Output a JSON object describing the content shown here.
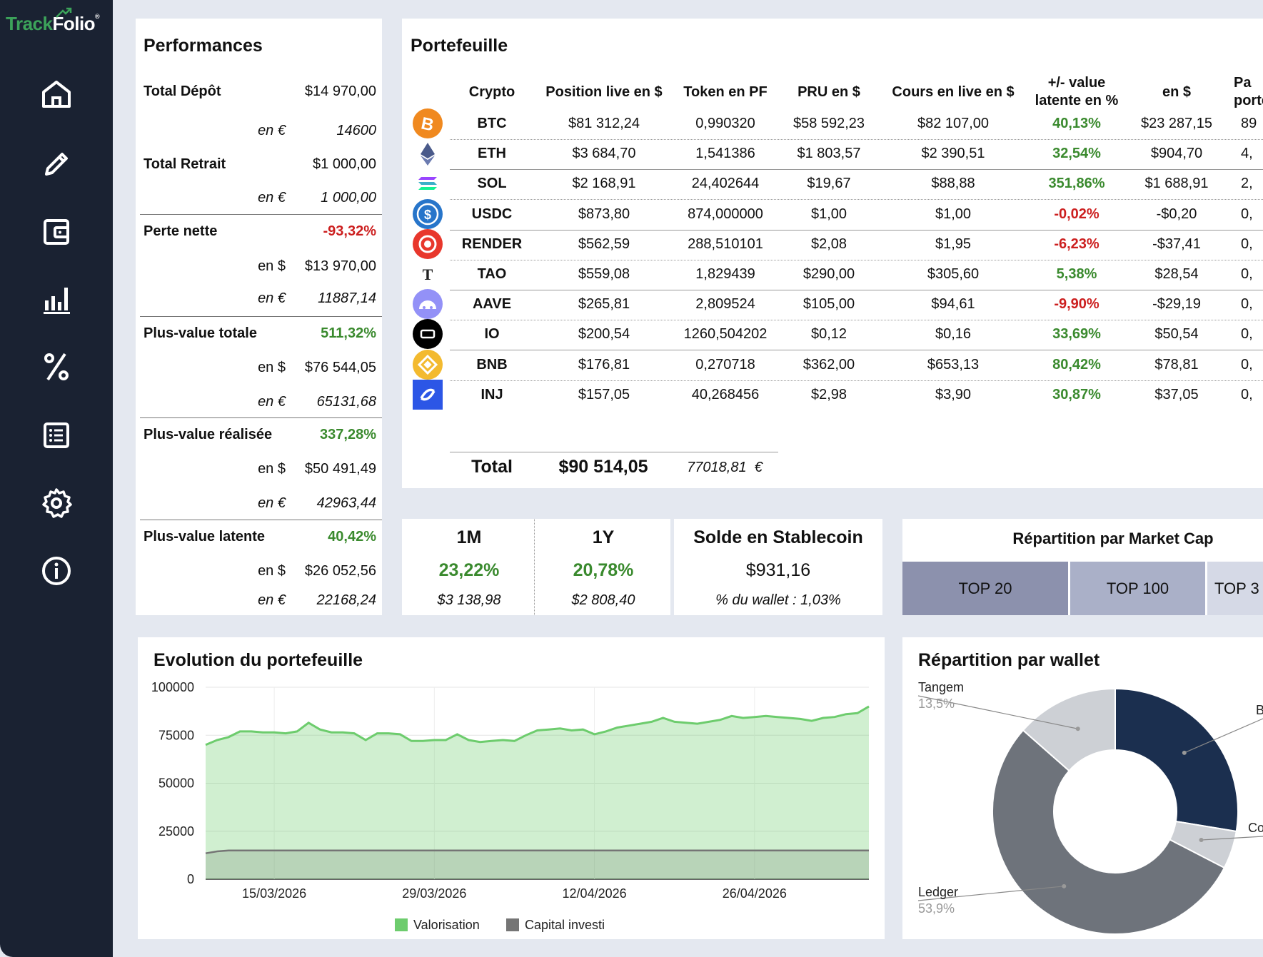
{
  "app": {
    "logo_track": "Track",
    "logo_folio": "Folio",
    "logo_reg": "®"
  },
  "nav": [
    {
      "name": "home-icon"
    },
    {
      "name": "pencil-icon"
    },
    {
      "name": "wallet-icon"
    },
    {
      "name": "bar-chart-icon"
    },
    {
      "name": "percent-icon"
    },
    {
      "name": "list-icon"
    },
    {
      "name": "gear-icon"
    },
    {
      "name": "info-icon"
    }
  ],
  "performances": {
    "title": "Performances",
    "total_depot": {
      "label": "Total Dépôt",
      "usd": "$14 970,00",
      "eur_label": "en €",
      "eur": "14600"
    },
    "total_retrait": {
      "label": "Total Retrait",
      "usd": "$1 000,00",
      "eur_label": "en €",
      "eur": "1 000,00"
    },
    "perte_nette": {
      "label": "Perte nette",
      "pct": "-93,32%",
      "usd_label": "en $",
      "usd": "$13 970,00",
      "eur_label": "en €",
      "eur": "11887,14"
    },
    "pv_totale": {
      "label": "Plus-value totale",
      "pct": "511,32%",
      "usd_label": "en $",
      "usd": "$76 544,05",
      "eur_label": "en €",
      "eur": "65131,68"
    },
    "pv_realisee": {
      "label": "Plus-value réalisée",
      "pct": "337,28%",
      "usd_label": "en $",
      "usd": "$50 491,49",
      "eur_label": "en €",
      "eur": "42963,44"
    },
    "pv_latente": {
      "label": "Plus-value latente",
      "pct": "40,42%",
      "usd_label": "en $",
      "usd": "$26 052,56",
      "eur_label": "en €",
      "eur": "22168,24"
    }
  },
  "portfolio": {
    "title": "Portefeuille",
    "headers": [
      "Crypto",
      "Position live en $",
      "Token en PF",
      "PRU en $",
      "Cours en live en $",
      "+/- value latente en %",
      "en $",
      "Pa porte"
    ],
    "rows": [
      {
        "crypto": "BTC",
        "pos": "$81 312,24",
        "tok": "0,990320",
        "pru": "$58 592,23",
        "cours": "$82 107,00",
        "pct": "40,13%",
        "sign": "pos",
        "usd": "$23 287,15",
        "part": "89",
        "color": "#f0891f"
      },
      {
        "crypto": "ETH",
        "pos": "$3 684,70",
        "tok": "1,541386",
        "pru": "$1 803,57",
        "cours": "$2 390,51",
        "pct": "32,54%",
        "sign": "pos",
        "usd": "$904,70",
        "part": "4,",
        "color": "#627eea"
      },
      {
        "crypto": "SOL",
        "pos": "$2 168,91",
        "tok": "24,402644",
        "pru": "$19,67",
        "cours": "$88,88",
        "pct": "351,86%",
        "sign": "pos",
        "usd": "$1 688,91",
        "part": "2,",
        "color": "#14f195"
      },
      {
        "crypto": "USDC",
        "pos": "$873,80",
        "tok": "874,000000",
        "pru": "$1,00",
        "cours": "$1,00",
        "pct": "-0,02%",
        "sign": "neg",
        "usd": "-$0,20",
        "part": "0,",
        "color": "#2775ca"
      },
      {
        "crypto": "RENDER",
        "pos": "$562,59",
        "tok": "288,510101",
        "pru": "$2,08",
        "cours": "$1,95",
        "pct": "-6,23%",
        "sign": "neg",
        "usd": "-$37,41",
        "part": "0,",
        "color": "#e8372c"
      },
      {
        "crypto": "TAO",
        "pos": "$559,08",
        "tok": "1,829439",
        "pru": "$290,00",
        "cours": "$305,60",
        "pct": "5,38%",
        "sign": "pos",
        "usd": "$28,54",
        "part": "0,",
        "color": "#ffffff"
      },
      {
        "crypto": "AAVE",
        "pos": "$265,81",
        "tok": "2,809524",
        "pru": "$105,00",
        "cours": "$94,61",
        "pct": "-9,90%",
        "sign": "neg",
        "usd": "-$29,19",
        "part": "0,",
        "color": "#9391f7"
      },
      {
        "crypto": "IO",
        "pos": "$200,54",
        "tok": "1260,504202",
        "pru": "$0,12",
        "cours": "$0,16",
        "pct": "33,69%",
        "sign": "pos",
        "usd": "$50,54",
        "part": "0,",
        "color": "#000000"
      },
      {
        "crypto": "BNB",
        "pos": "$176,81",
        "tok": "0,270718",
        "pru": "$362,00",
        "cours": "$653,13",
        "pct": "80,42%",
        "sign": "pos",
        "usd": "$78,81",
        "part": "0,",
        "color": "#f3ba2f"
      },
      {
        "crypto": "INJ",
        "pos": "$157,05",
        "tok": "40,268456",
        "pru": "$2,98",
        "cours": "$3,90",
        "pct": "30,87%",
        "sign": "pos",
        "usd": "$37,05",
        "part": "0,",
        "color": "#2c56e6"
      }
    ],
    "total_label": "Total",
    "total_usd": "$90 514,05",
    "total_eur": "77018,81",
    "total_eur_sym": "€"
  },
  "periods": [
    {
      "label": "1M",
      "pct": "23,22%",
      "usd": "$3 138,98"
    },
    {
      "label": "1Y",
      "pct": "20,78%",
      "usd": "$2 808,40"
    }
  ],
  "stablecoin": {
    "title": "Solde en Stablecoin",
    "value": "$931,16",
    "pct": "% du wallet : 1,03%"
  },
  "market_cap": {
    "title": "Répartition par Market Cap",
    "boxes": [
      {
        "label": "TOP 20",
        "bg": "#8c91ad"
      },
      {
        "label": "TOP 100",
        "bg": "#aab0c8"
      },
      {
        "label": "TOP 3",
        "bg": "#d5d9e6"
      }
    ]
  },
  "evolution": {
    "title": "Evolution du portefeuille",
    "chart_data": {
      "type": "area",
      "x": [
        "09/03/2026",
        "10/03/2026",
        "11/03/2026",
        "12/03/2026",
        "13/03/2026",
        "14/03/2026",
        "15/03/2026",
        "16/03/2026",
        "17/03/2026",
        "18/03/2026",
        "19/03/2026",
        "20/03/2026",
        "21/03/2026",
        "22/03/2026",
        "23/03/2026",
        "24/03/2026",
        "25/03/2026",
        "26/03/2026",
        "27/03/2026",
        "28/03/2026",
        "29/03/2026",
        "30/03/2026",
        "31/03/2026",
        "01/04/2026",
        "02/04/2026",
        "03/04/2026",
        "04/04/2026",
        "05/04/2026",
        "06/04/2026",
        "07/04/2026",
        "08/04/2026",
        "09/04/2026",
        "10/04/2026",
        "11/04/2026",
        "12/04/2026",
        "13/04/2026",
        "14/04/2026",
        "15/04/2026",
        "16/04/2026",
        "17/04/2026",
        "18/04/2026",
        "19/04/2026",
        "20/04/2026",
        "21/04/2026",
        "22/04/2026",
        "23/04/2026",
        "24/04/2026",
        "25/04/2026",
        "26/04/2026",
        "27/04/2026",
        "28/04/2026",
        "29/04/2026",
        "30/04/2026",
        "01/05/2026",
        "02/05/2026",
        "03/05/2026",
        "04/05/2026",
        "05/05/2026",
        "06/05/2026"
      ],
      "series": [
        {
          "name": "Valorisation",
          "color": "#6dcc6d",
          "values": [
            70000,
            72500,
            74000,
            77000,
            77000,
            76500,
            76500,
            76000,
            77000,
            81500,
            78000,
            76500,
            76500,
            76000,
            72500,
            76000,
            76000,
            75500,
            72000,
            72000,
            72500,
            72500,
            75500,
            72500,
            71500,
            72000,
            72500,
            72000,
            75000,
            77500,
            78000,
            78500,
            77500,
            78000,
            75500,
            77000,
            79000,
            80000,
            81000,
            82000,
            84000,
            82000,
            81500,
            81000,
            82000,
            83000,
            85000,
            84000,
            84500,
            85000,
            84500,
            84000,
            83500,
            82500,
            84000,
            84500,
            86000,
            86500,
            90000
          ]
        },
        {
          "name": "Capital investi",
          "color": "#757575",
          "values": [
            13500,
            14500,
            14970,
            14970,
            14970,
            14970,
            14970,
            14970,
            14970,
            14970,
            14970,
            14970,
            14970,
            14970,
            14970,
            14970,
            14970,
            14970,
            14970,
            14970,
            14970,
            14970,
            14970,
            14970,
            14970,
            14970,
            14970,
            14970,
            14970,
            14970,
            14970,
            14970,
            14970,
            14970,
            14970,
            14970,
            14970,
            14970,
            14970,
            14970,
            14970,
            14970,
            14970,
            14970,
            14970,
            14970,
            14970,
            14970,
            14970,
            14970,
            14970,
            14970,
            14970,
            14970,
            14970,
            14970,
            14970,
            14970,
            14970
          ]
        }
      ],
      "y_ticks": [
        "100000",
        "75000",
        "50000",
        "25000",
        "0"
      ],
      "x_ticks": [
        "15/03/2026",
        "29/03/2026",
        "12/04/2026",
        "26/04/2026"
      ],
      "ylim": [
        0,
        100000
      ],
      "grid": true,
      "legend": "bottom"
    }
  },
  "wallet": {
    "title": "Répartition par wallet",
    "chart_data": {
      "type": "pie",
      "slices": [
        {
          "label": "B",
          "value": 27.6,
          "color": "#1b2f4f"
        },
        {
          "label": "Co",
          "value": 5.0,
          "color": "#cdd0d5"
        },
        {
          "label": "Ledger",
          "pct": "53,9%",
          "value": 53.9,
          "color": "#6e737b"
        },
        {
          "label": "Tangem",
          "pct": "13,5%",
          "value": 13.5,
          "color": "#cdd0d5"
        }
      ]
    }
  }
}
